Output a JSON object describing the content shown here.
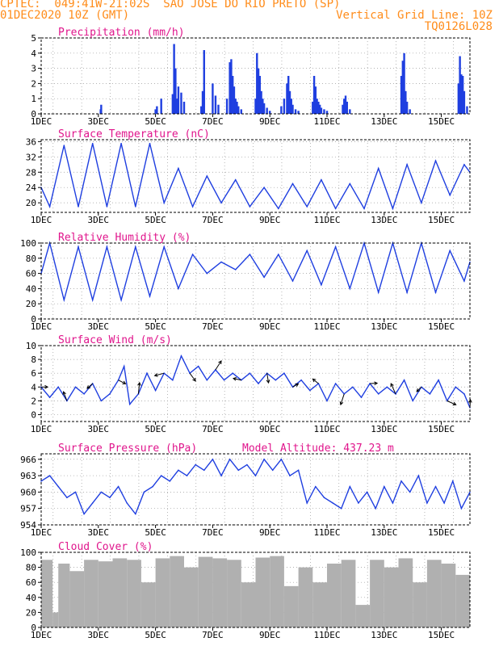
{
  "header": {
    "line1_left": "CPTEC:  049:41W-21:02S  SAO JOSE DO RIO PRETO (SP)",
    "line2_left": "01DEC2020 10Z (GMT)",
    "line2_right": "Vertical Grid Line: 10Z",
    "line3_right": "TQ0126L028"
  },
  "colors": {
    "header": "#ff8c1a",
    "panel_title": "#e0158c",
    "series": "#1f3fe0",
    "precip": "#1f3fe0",
    "cloud": "#b0b0b0",
    "arrow": "#000000"
  },
  "x_ticks": [
    "1DEC",
    "3DEC",
    "5DEC",
    "7DEC",
    "9DEC",
    "11DEC",
    "13DEC",
    "15DEC"
  ],
  "chart_data": [
    {
      "type": "bar",
      "title": "Precipitation (mm/h)",
      "ylim": [
        0,
        5
      ],
      "yticks": [
        0,
        1,
        2,
        3,
        4,
        5
      ],
      "x_unit": "day of December 2020 (1.0 = 01DEC 00Z)",
      "x": [
        3.08,
        3.1,
        5.0,
        5.05,
        5.2,
        5.6,
        5.65,
        5.7,
        5.75,
        5.8,
        5.9,
        6.0,
        6.6,
        6.65,
        6.7,
        7.0,
        7.1,
        7.2,
        7.5,
        7.6,
        7.65,
        7.7,
        7.75,
        7.8,
        7.85,
        7.9,
        8.0,
        8.5,
        8.55,
        8.6,
        8.65,
        8.7,
        8.75,
        8.8,
        8.9,
        9.0,
        9.4,
        9.5,
        9.6,
        9.65,
        9.7,
        9.75,
        9.8,
        9.9,
        10.0,
        10.5,
        10.55,
        10.6,
        10.65,
        10.7,
        10.75,
        10.8,
        10.9,
        11.0,
        11.55,
        11.6,
        11.65,
        11.7,
        11.8,
        13.6,
        13.65,
        13.7,
        13.75,
        13.8,
        13.9,
        15.6,
        15.65,
        15.7,
        15.75,
        15.8,
        15.9
      ],
      "values": [
        0.3,
        0.6,
        0.3,
        0.5,
        1.0,
        1.3,
        4.6,
        3.0,
        1.0,
        1.8,
        1.4,
        0.8,
        0.5,
        1.5,
        4.2,
        2.0,
        1.2,
        0.6,
        1.0,
        3.4,
        3.6,
        2.5,
        1.8,
        1.0,
        0.8,
        0.5,
        0.3,
        1.0,
        4.0,
        3.0,
        2.5,
        1.5,
        1.0,
        0.7,
        0.4,
        0.2,
        0.5,
        1.0,
        2.0,
        2.5,
        1.5,
        1.0,
        0.6,
        0.3,
        0.2,
        0.8,
        2.5,
        1.8,
        1.0,
        0.8,
        0.6,
        0.4,
        0.3,
        0.2,
        0.6,
        1.0,
        1.2,
        0.8,
        0.3,
        2.5,
        3.5,
        4.0,
        1.5,
        0.8,
        0.3,
        2.0,
        3.8,
        2.6,
        2.5,
        1.5,
        0.5
      ]
    },
    {
      "type": "line",
      "title": "Surface Temperature (nC)",
      "ylim": [
        17.5,
        36.5
      ],
      "yticks": [
        20,
        24,
        28,
        32,
        36
      ],
      "x_unit": "day of December 2020 (1.0 = 01DEC 00Z)",
      "x": [
        1.0,
        1.3,
        1.8,
        2.3,
        2.8,
        3.3,
        3.8,
        4.3,
        4.8,
        5.3,
        5.8,
        6.3,
        6.8,
        7.3,
        7.8,
        8.3,
        8.8,
        9.3,
        9.8,
        10.3,
        10.8,
        11.3,
        11.8,
        12.3,
        12.8,
        13.3,
        13.8,
        14.3,
        14.8,
        15.3,
        15.8,
        16.0
      ],
      "values": [
        24,
        19,
        35,
        19,
        35.5,
        19,
        35.5,
        19,
        35.5,
        20,
        29,
        19,
        27,
        20,
        26,
        19,
        24,
        18.5,
        25,
        19,
        26,
        18.5,
        25,
        18.5,
        29,
        18.5,
        30,
        20,
        31,
        22,
        30,
        28
      ]
    },
    {
      "type": "line",
      "title": "Relative Humidity (%)",
      "ylim": [
        0,
        100
      ],
      "yticks": [
        0,
        20,
        40,
        60,
        80,
        100
      ],
      "x_unit": "day of December 2020 (1.0 = 01DEC 00Z)",
      "x": [
        1.0,
        1.3,
        1.8,
        2.3,
        2.8,
        3.3,
        3.8,
        4.3,
        4.8,
        5.3,
        5.8,
        6.3,
        6.8,
        7.3,
        7.8,
        8.3,
        8.8,
        9.3,
        9.8,
        10.3,
        10.8,
        11.3,
        11.8,
        12.3,
        12.8,
        13.3,
        13.8,
        14.3,
        14.8,
        15.3,
        15.8,
        16.0
      ],
      "values": [
        60,
        100,
        25,
        95,
        25,
        95,
        25,
        95,
        30,
        95,
        40,
        85,
        60,
        75,
        65,
        85,
        55,
        85,
        50,
        90,
        45,
        95,
        40,
        100,
        35,
        100,
        35,
        100,
        35,
        90,
        50,
        75
      ]
    },
    {
      "type": "line",
      "title": "Surface Wind (m/s)",
      "ylim": [
        -1,
        10
      ],
      "yticks": [
        0,
        2,
        4,
        6,
        8,
        10
      ],
      "x_unit": "day of December 2020 (1.0 = 01DEC 00Z)",
      "x": [
        1.0,
        1.3,
        1.6,
        1.9,
        2.2,
        2.5,
        2.8,
        3.1,
        3.4,
        3.7,
        3.9,
        4.1,
        4.4,
        4.7,
        5.0,
        5.3,
        5.6,
        5.9,
        6.2,
        6.5,
        6.8,
        7.1,
        7.4,
        7.7,
        8.0,
        8.3,
        8.6,
        8.9,
        9.2,
        9.5,
        9.8,
        10.1,
        10.4,
        10.7,
        11.0,
        11.3,
        11.6,
        11.9,
        12.2,
        12.5,
        12.8,
        13.1,
        13.4,
        13.7,
        14.0,
        14.3,
        14.6,
        14.9,
        15.2,
        15.5,
        15.8,
        16.0
      ],
      "values": [
        4,
        2.5,
        4,
        2,
        4,
        3,
        4.5,
        2,
        3,
        5,
        7,
        1.5,
        3,
        6,
        3.5,
        6,
        5,
        8.5,
        6,
        7,
        5,
        6.5,
        5,
        6,
        5,
        6,
        4.5,
        6,
        5,
        6,
        4,
        5,
        3.5,
        4.5,
        2,
        4.5,
        3,
        4,
        2.5,
        4.5,
        3,
        4,
        3,
        5,
        2,
        4,
        3,
        5,
        2,
        4,
        3,
        1
      ]
    },
    {
      "type": "line",
      "title": "Surface Pressure (hPa)",
      "annotation": "Model Altitude: 437.23 m",
      "ylim": [
        954,
        967
      ],
      "yticks": [
        954,
        957,
        960,
        963,
        966
      ],
      "x_unit": "day of December 2020 (1.0 = 01DEC 00Z)",
      "x": [
        1.0,
        1.3,
        1.6,
        1.9,
        2.2,
        2.5,
        2.8,
        3.1,
        3.4,
        3.7,
        4.0,
        4.3,
        4.6,
        4.9,
        5.2,
        5.5,
        5.8,
        6.1,
        6.4,
        6.7,
        7.0,
        7.3,
        7.6,
        7.9,
        8.2,
        8.5,
        8.8,
        9.1,
        9.4,
        9.7,
        10.0,
        10.3,
        10.6,
        10.9,
        11.2,
        11.5,
        11.8,
        12.1,
        12.4,
        12.7,
        13.0,
        13.3,
        13.6,
        13.9,
        14.2,
        14.5,
        14.8,
        15.1,
        15.4,
        15.7,
        16.0
      ],
      "values": [
        962,
        963,
        961,
        959,
        960,
        956,
        958,
        960,
        959,
        961,
        958,
        956,
        960,
        961,
        963,
        962,
        964,
        963,
        965,
        964,
        966,
        963,
        966,
        964,
        965,
        963,
        966,
        964,
        966,
        963,
        964,
        958,
        961,
        959,
        958,
        957,
        961,
        958,
        960,
        957,
        961,
        958,
        962,
        960,
        963,
        958,
        961,
        958,
        962,
        957,
        960
      ]
    },
    {
      "type": "area",
      "title": "Cloud Cover (%)",
      "ylim": [
        0,
        100
      ],
      "yticks": [
        0,
        20,
        40,
        60,
        80,
        100
      ],
      "x_unit": "day of December 2020 (1.0 = 01DEC 00Z)",
      "x": [
        1.0,
        1.4,
        1.6,
        2.0,
        2.5,
        3.0,
        3.5,
        4.0,
        4.5,
        5.0,
        5.5,
        6.0,
        6.5,
        7.0,
        7.5,
        8.0,
        8.5,
        9.0,
        9.5,
        10.0,
        10.5,
        11.0,
        11.5,
        12.0,
        12.5,
        13.0,
        13.5,
        14.0,
        14.5,
        15.0,
        15.5,
        16.0
      ],
      "values": [
        90,
        20,
        85,
        75,
        90,
        88,
        92,
        90,
        60,
        92,
        95,
        80,
        94,
        92,
        90,
        60,
        93,
        95,
        55,
        80,
        60,
        85,
        90,
        30,
        90,
        80,
        92,
        60,
        90,
        85,
        70,
        90
      ]
    }
  ]
}
